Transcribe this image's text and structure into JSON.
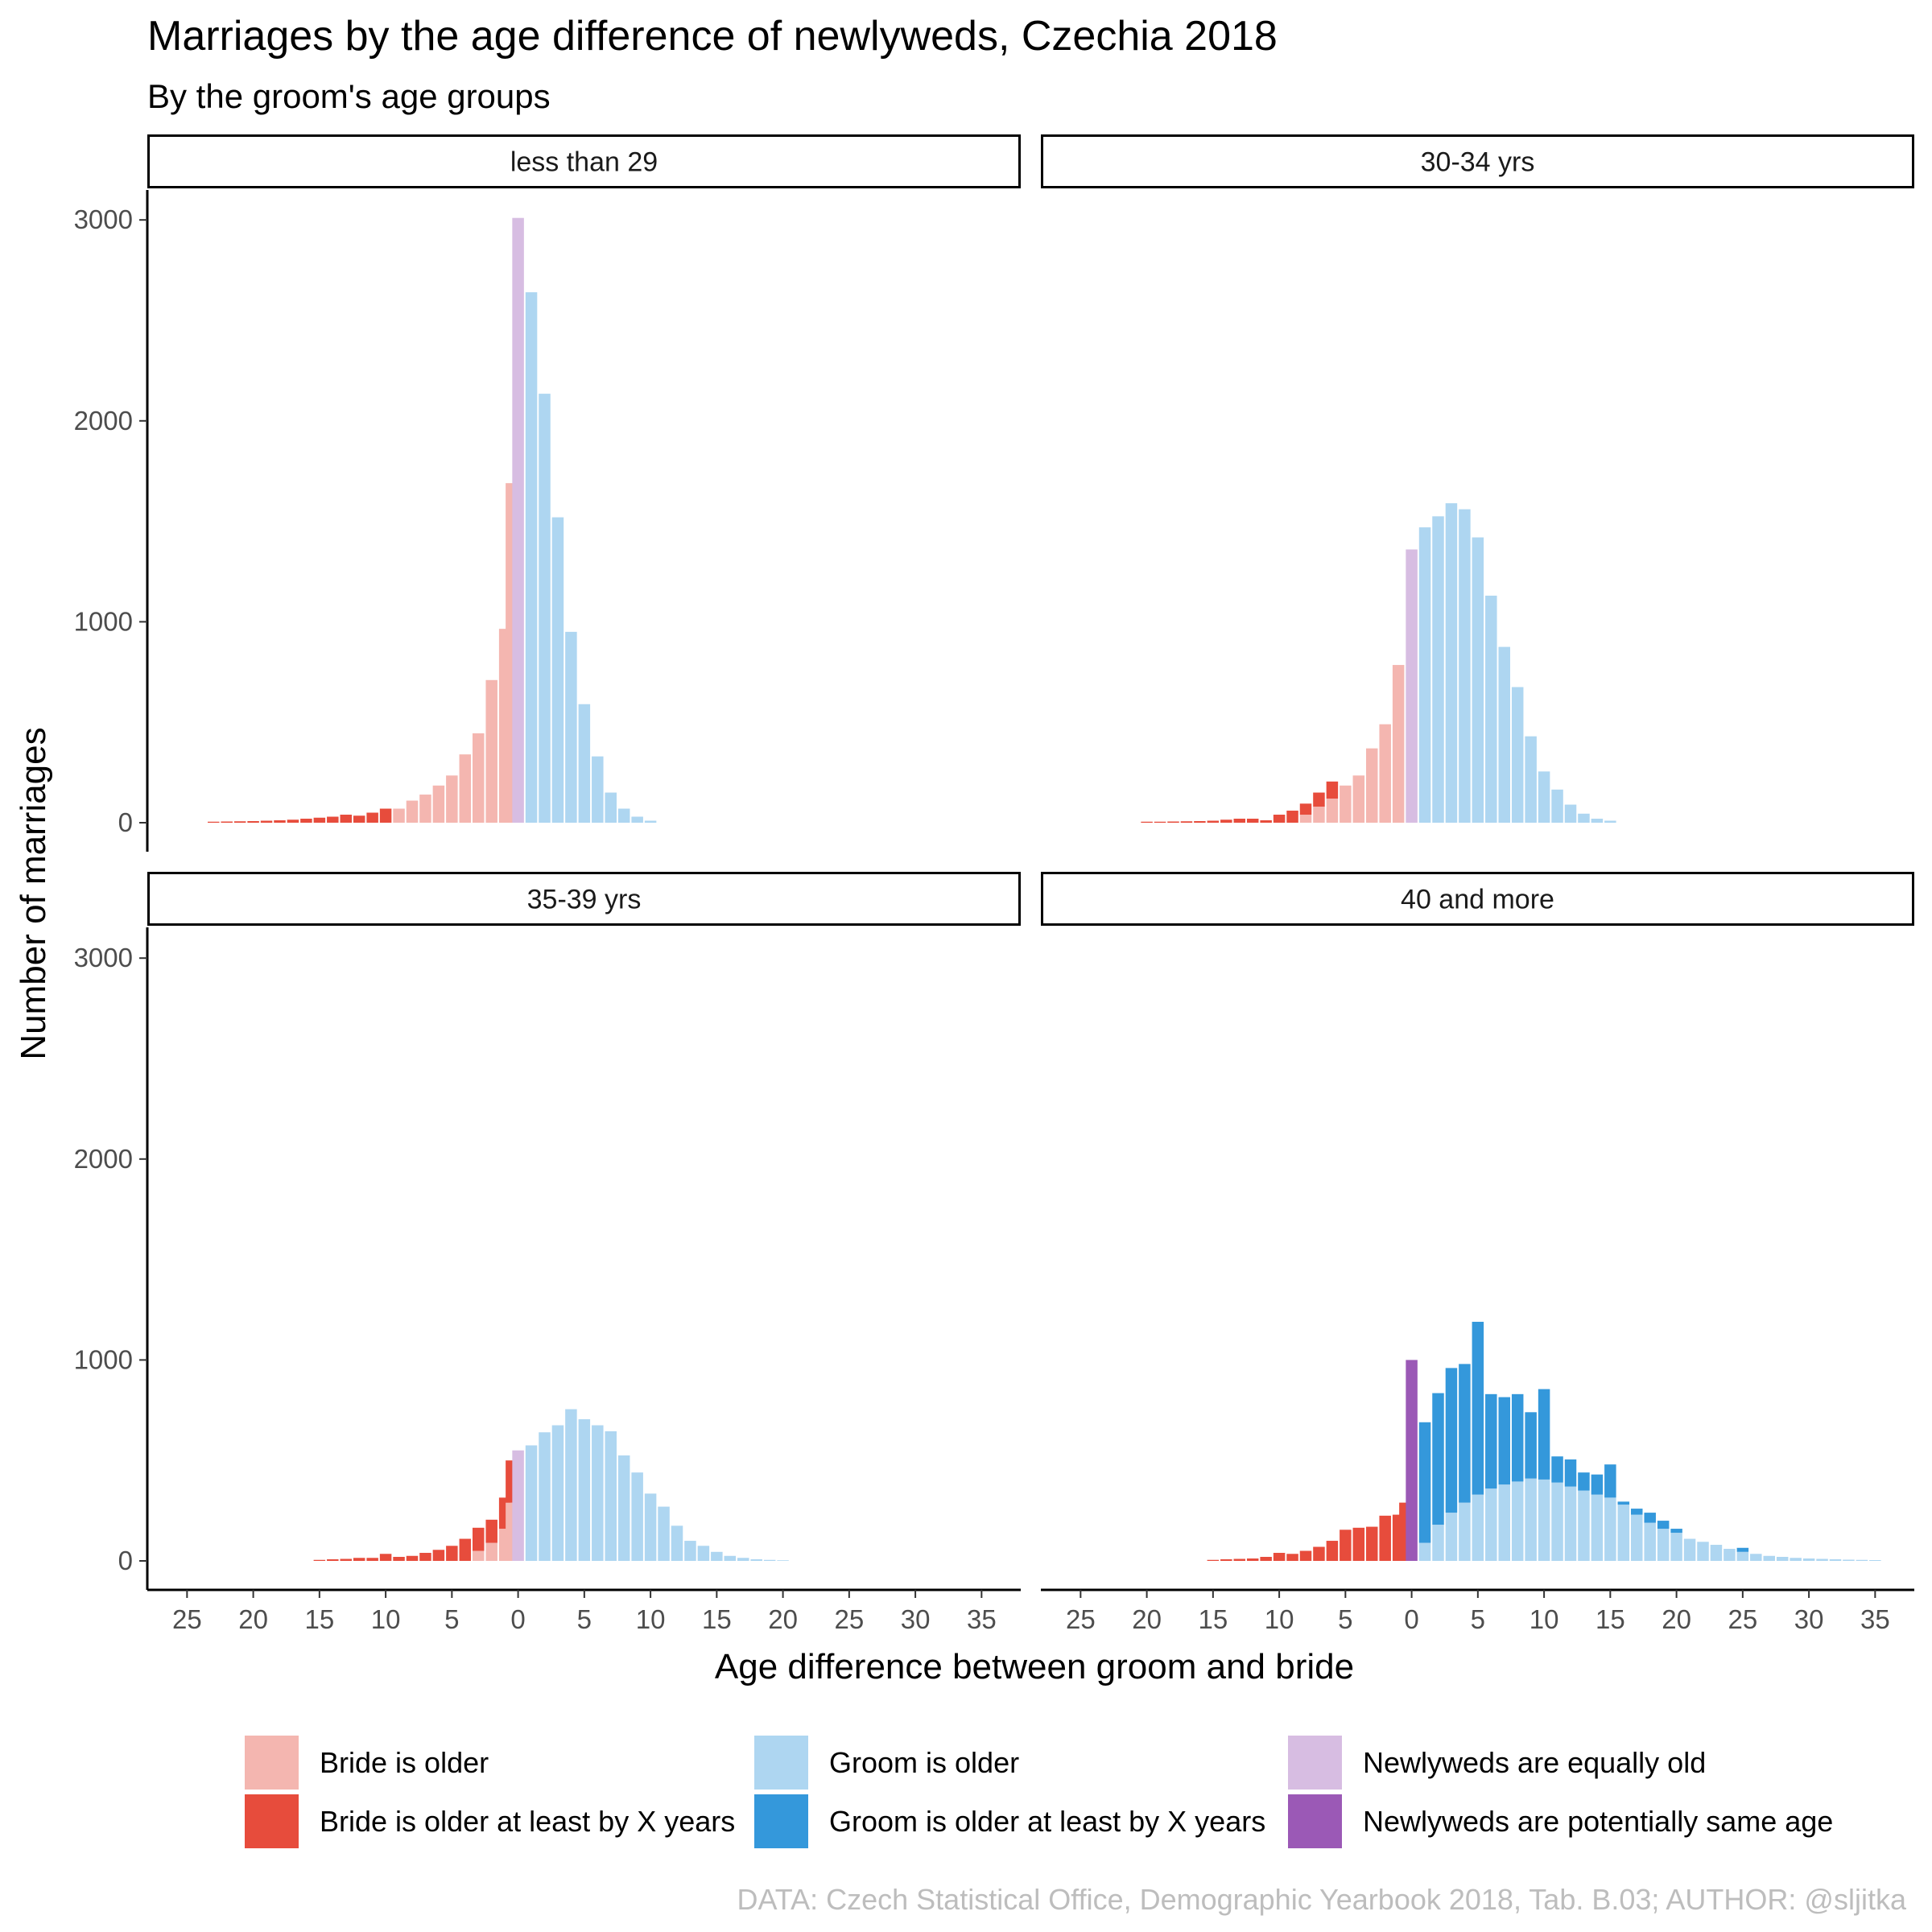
{
  "chart_data": {
    "type": "bar",
    "stacked": true,
    "title": "Marriages by the age difference of newlyweds, Czechia 2018",
    "subtitle": "By the groom's age groups",
    "xlabel": "Age difference between groom and bride",
    "ylabel": "Number of marriages",
    "caption": "DATA: Czech Statistical Office, Demographic Yearbook 2018, Tab. B.03; AUTHOR: @sljitka",
    "xlim": [
      -28,
      38
    ],
    "ylim": [
      0,
      3150
    ],
    "x_ticks": [
      {
        "value": -25,
        "label": "25"
      },
      {
        "value": -20,
        "label": "20"
      },
      {
        "value": -15,
        "label": "15"
      },
      {
        "value": -10,
        "label": "10"
      },
      {
        "value": -5,
        "label": "5"
      },
      {
        "value": 0,
        "label": "0"
      },
      {
        "value": 5,
        "label": "5"
      },
      {
        "value": 10,
        "label": "10"
      },
      {
        "value": 15,
        "label": "15"
      },
      {
        "value": 20,
        "label": "20"
      },
      {
        "value": 25,
        "label": "25"
      },
      {
        "value": 30,
        "label": "30"
      },
      {
        "value": 35,
        "label": "35"
      }
    ],
    "y_ticks": [
      {
        "value": 0,
        "label": "0"
      },
      {
        "value": 1000,
        "label": "1000"
      },
      {
        "value": 2000,
        "label": "2000"
      },
      {
        "value": 3000,
        "label": "3000"
      }
    ],
    "grid": false,
    "legend_position": "bottom",
    "categories": [
      {
        "key": "bride_older",
        "label": "Bride is older",
        "color": "#f4b6b0"
      },
      {
        "key": "bride_older_x",
        "label": "Bride is older at least by X years",
        "color": "#e74c3c"
      },
      {
        "key": "groom_older",
        "label": "Groom is older",
        "color": "#aed6f1"
      },
      {
        "key": "groom_older_x",
        "label": "Groom is older at least by X years",
        "color": "#3498db"
      },
      {
        "key": "equal",
        "label": "Newlyweds are equally old",
        "color": "#d7bde2"
      },
      {
        "key": "potentially_same",
        "label": "Newlyweds are potentially same age",
        "color": "#9b59b6"
      }
    ],
    "panels": [
      {
        "label": "less than 29",
        "bars": [
          {
            "x": -23,
            "light": 0,
            "dark": 5
          },
          {
            "x": -22,
            "light": 0,
            "dark": 6
          },
          {
            "x": -21,
            "light": 0,
            "dark": 7
          },
          {
            "x": -20,
            "light": 0,
            "dark": 8
          },
          {
            "x": -19,
            "light": 0,
            "dark": 10
          },
          {
            "x": -18,
            "light": 0,
            "dark": 12
          },
          {
            "x": -17,
            "light": 0,
            "dark": 15
          },
          {
            "x": -16,
            "light": 0,
            "dark": 20
          },
          {
            "x": -15,
            "light": 0,
            "dark": 25
          },
          {
            "x": -14,
            "light": 0,
            "dark": 30
          },
          {
            "x": -13,
            "light": 0,
            "dark": 40
          },
          {
            "x": -12,
            "light": 0,
            "dark": 35
          },
          {
            "x": -11,
            "light": 0,
            "dark": 50
          },
          {
            "x": -10,
            "light": 0,
            "dark": 70
          },
          {
            "x": -9,
            "light": 70,
            "dark": 0
          },
          {
            "x": -8,
            "light": 110,
            "dark": 0
          },
          {
            "x": -7,
            "light": 140,
            "dark": 0
          },
          {
            "x": -6,
            "light": 185,
            "dark": 0
          },
          {
            "x": -5,
            "light": 235,
            "dark": 0
          },
          {
            "x": -4,
            "light": 340,
            "dark": 0
          },
          {
            "x": -3,
            "light": 445,
            "dark": 0
          },
          {
            "x": -2,
            "light": 710,
            "dark": 0
          },
          {
            "x": -1,
            "light": 965,
            "dark": 0
          },
          {
            "x": -0.5,
            "light": 1690,
            "dark": 0
          },
          {
            "x": 0,
            "light": 3010,
            "dark": 0,
            "kind": "equal"
          },
          {
            "x": 1,
            "light": 2640,
            "dark": 0
          },
          {
            "x": 2,
            "light": 2135,
            "dark": 0
          },
          {
            "x": 3,
            "light": 1520,
            "dark": 0
          },
          {
            "x": 4,
            "light": 950,
            "dark": 0
          },
          {
            "x": 5,
            "light": 590,
            "dark": 0
          },
          {
            "x": 6,
            "light": 330,
            "dark": 0
          },
          {
            "x": 7,
            "light": 150,
            "dark": 0
          },
          {
            "x": 8,
            "light": 70,
            "dark": 0
          },
          {
            "x": 9,
            "light": 30,
            "dark": 0
          },
          {
            "x": 10,
            "light": 10,
            "dark": 0
          }
        ]
      },
      {
        "label": "30-34 yrs",
        "bars": [
          {
            "x": -20,
            "light": 0,
            "dark": 5
          },
          {
            "x": -19,
            "light": 0,
            "dark": 5
          },
          {
            "x": -18,
            "light": 0,
            "dark": 6
          },
          {
            "x": -17,
            "light": 0,
            "dark": 7
          },
          {
            "x": -16,
            "light": 0,
            "dark": 8
          },
          {
            "x": -15,
            "light": 0,
            "dark": 10
          },
          {
            "x": -14,
            "light": 0,
            "dark": 15
          },
          {
            "x": -13,
            "light": 0,
            "dark": 20
          },
          {
            "x": -12,
            "light": 0,
            "dark": 20
          },
          {
            "x": -11,
            "light": 0,
            "dark": 12
          },
          {
            "x": -10,
            "light": 0,
            "dark": 40
          },
          {
            "x": -9,
            "light": 0,
            "dark": 60
          },
          {
            "x": -8,
            "light": 40,
            "dark": 55
          },
          {
            "x": -7,
            "light": 80,
            "dark": 70
          },
          {
            "x": -6,
            "light": 120,
            "dark": 85
          },
          {
            "x": -5,
            "light": 185,
            "dark": 0
          },
          {
            "x": -4,
            "light": 235,
            "dark": 0
          },
          {
            "x": -3,
            "light": 370,
            "dark": 0
          },
          {
            "x": -2,
            "light": 490,
            "dark": 0
          },
          {
            "x": -1,
            "light": 785,
            "dark": 0
          },
          {
            "x": 0,
            "light": 1360,
            "dark": 0,
            "kind": "equal"
          },
          {
            "x": 1,
            "light": 1470,
            "dark": 0
          },
          {
            "x": 2,
            "light": 1525,
            "dark": 0
          },
          {
            "x": 3,
            "light": 1590,
            "dark": 0
          },
          {
            "x": 4,
            "light": 1560,
            "dark": 0
          },
          {
            "x": 5,
            "light": 1420,
            "dark": 0
          },
          {
            "x": 6,
            "light": 1130,
            "dark": 0
          },
          {
            "x": 7,
            "light": 875,
            "dark": 0
          },
          {
            "x": 8,
            "light": 675,
            "dark": 0
          },
          {
            "x": 9,
            "light": 430,
            "dark": 0
          },
          {
            "x": 10,
            "light": 255,
            "dark": 0
          },
          {
            "x": 11,
            "light": 165,
            "dark": 0
          },
          {
            "x": 12,
            "light": 90,
            "dark": 0
          },
          {
            "x": 13,
            "light": 45,
            "dark": 0
          },
          {
            "x": 14,
            "light": 20,
            "dark": 0
          },
          {
            "x": 15,
            "light": 10,
            "dark": 0
          }
        ]
      },
      {
        "label": "35-39 yrs",
        "bars": [
          {
            "x": -15,
            "light": 0,
            "dark": 5
          },
          {
            "x": -14,
            "light": 0,
            "dark": 8
          },
          {
            "x": -13,
            "light": 0,
            "dark": 10
          },
          {
            "x": -12,
            "light": 0,
            "dark": 15
          },
          {
            "x": -11,
            "light": 0,
            "dark": 15
          },
          {
            "x": -10,
            "light": 0,
            "dark": 35
          },
          {
            "x": -9,
            "light": 0,
            "dark": 20
          },
          {
            "x": -8,
            "light": 0,
            "dark": 25
          },
          {
            "x": -7,
            "light": 0,
            "dark": 40
          },
          {
            "x": -6,
            "light": 0,
            "dark": 55
          },
          {
            "x": -5,
            "light": 0,
            "dark": 75
          },
          {
            "x": -4,
            "light": 0,
            "dark": 110
          },
          {
            "x": -3,
            "light": 50,
            "dark": 115
          },
          {
            "x": -2,
            "light": 90,
            "dark": 115
          },
          {
            "x": -1,
            "light": 160,
            "dark": 155
          },
          {
            "x": -0.5,
            "light": 290,
            "dark": 210
          },
          {
            "x": 0,
            "light": 550,
            "dark": 0,
            "kind": "equal"
          },
          {
            "x": 1,
            "light": 575,
            "dark": 0
          },
          {
            "x": 2,
            "light": 640,
            "dark": 0
          },
          {
            "x": 3,
            "light": 675,
            "dark": 0
          },
          {
            "x": 4,
            "light": 755,
            "dark": 0
          },
          {
            "x": 5,
            "light": 705,
            "dark": 0
          },
          {
            "x": 6,
            "light": 675,
            "dark": 0
          },
          {
            "x": 7,
            "light": 645,
            "dark": 0
          },
          {
            "x": 8,
            "light": 525,
            "dark": 0
          },
          {
            "x": 9,
            "light": 440,
            "dark": 0
          },
          {
            "x": 10,
            "light": 335,
            "dark": 0
          },
          {
            "x": 11,
            "light": 270,
            "dark": 0
          },
          {
            "x": 12,
            "light": 175,
            "dark": 0
          },
          {
            "x": 13,
            "light": 100,
            "dark": 0
          },
          {
            "x": 14,
            "light": 75,
            "dark": 0
          },
          {
            "x": 15,
            "light": 45,
            "dark": 0
          },
          {
            "x": 16,
            "light": 25,
            "dark": 0
          },
          {
            "x": 17,
            "light": 15,
            "dark": 0
          },
          {
            "x": 18,
            "light": 8,
            "dark": 0
          },
          {
            "x": 19,
            "light": 5,
            "dark": 0
          },
          {
            "x": 20,
            "light": 3,
            "dark": 0
          }
        ]
      },
      {
        "label": "40 and more",
        "bars": [
          {
            "x": -15,
            "light": 0,
            "dark": 5
          },
          {
            "x": -14,
            "light": 0,
            "dark": 8
          },
          {
            "x": -13,
            "light": 0,
            "dark": 10
          },
          {
            "x": -12,
            "light": 0,
            "dark": 12
          },
          {
            "x": -11,
            "light": 0,
            "dark": 20
          },
          {
            "x": -10,
            "light": 0,
            "dark": 40
          },
          {
            "x": -9,
            "light": 0,
            "dark": 35
          },
          {
            "x": -8,
            "light": 0,
            "dark": 50
          },
          {
            "x": -7,
            "light": 0,
            "dark": 70
          },
          {
            "x": -6,
            "light": 0,
            "dark": 100
          },
          {
            "x": -5,
            "light": 0,
            "dark": 155
          },
          {
            "x": -4,
            "light": 0,
            "dark": 165
          },
          {
            "x": -3,
            "light": 0,
            "dark": 170
          },
          {
            "x": -2,
            "light": 0,
            "dark": 225
          },
          {
            "x": -1,
            "light": 0,
            "dark": 230
          },
          {
            "x": -0.5,
            "light": 0,
            "dark": 290
          },
          {
            "x": 0,
            "light": 0,
            "dark": 1000,
            "kind": "potentially_same"
          },
          {
            "x": 1,
            "light": 90,
            "dark": 600
          },
          {
            "x": 2,
            "light": 180,
            "dark": 655
          },
          {
            "x": 3,
            "light": 240,
            "dark": 720
          },
          {
            "x": 4,
            "light": 290,
            "dark": 690
          },
          {
            "x": 5,
            "light": 330,
            "dark": 860
          },
          {
            "x": 6,
            "light": 360,
            "dark": 470
          },
          {
            "x": 7,
            "light": 380,
            "dark": 435
          },
          {
            "x": 8,
            "light": 395,
            "dark": 435
          },
          {
            "x": 9,
            "light": 410,
            "dark": 330
          },
          {
            "x": 10,
            "light": 405,
            "dark": 450
          },
          {
            "x": 11,
            "light": 390,
            "dark": 130
          },
          {
            "x": 12,
            "light": 370,
            "dark": 135
          },
          {
            "x": 13,
            "light": 350,
            "dark": 90
          },
          {
            "x": 14,
            "light": 330,
            "dark": 100
          },
          {
            "x": 15,
            "light": 315,
            "dark": 165
          },
          {
            "x": 16,
            "light": 280,
            "dark": 15
          },
          {
            "x": 17,
            "light": 230,
            "dark": 30
          },
          {
            "x": 18,
            "light": 190,
            "dark": 50
          },
          {
            "x": 19,
            "light": 160,
            "dark": 40
          },
          {
            "x": 20,
            "light": 140,
            "dark": 20
          },
          {
            "x": 21,
            "light": 110,
            "dark": 0
          },
          {
            "x": 22,
            "light": 95,
            "dark": 0
          },
          {
            "x": 23,
            "light": 80,
            "dark": 0
          },
          {
            "x": 24,
            "light": 60,
            "dark": 0
          },
          {
            "x": 25,
            "light": 45,
            "dark": 20
          },
          {
            "x": 26,
            "light": 35,
            "dark": 0
          },
          {
            "x": 27,
            "light": 25,
            "dark": 0
          },
          {
            "x": 28,
            "light": 20,
            "dark": 0
          },
          {
            "x": 29,
            "light": 15,
            "dark": 0
          },
          {
            "x": 30,
            "light": 12,
            "dark": 0
          },
          {
            "x": 31,
            "light": 10,
            "dark": 0
          },
          {
            "x": 32,
            "light": 8,
            "dark": 0
          },
          {
            "x": 33,
            "light": 6,
            "dark": 0
          },
          {
            "x": 34,
            "light": 5,
            "dark": 0
          },
          {
            "x": 35,
            "light": 4,
            "dark": 0
          }
        ]
      }
    ]
  }
}
